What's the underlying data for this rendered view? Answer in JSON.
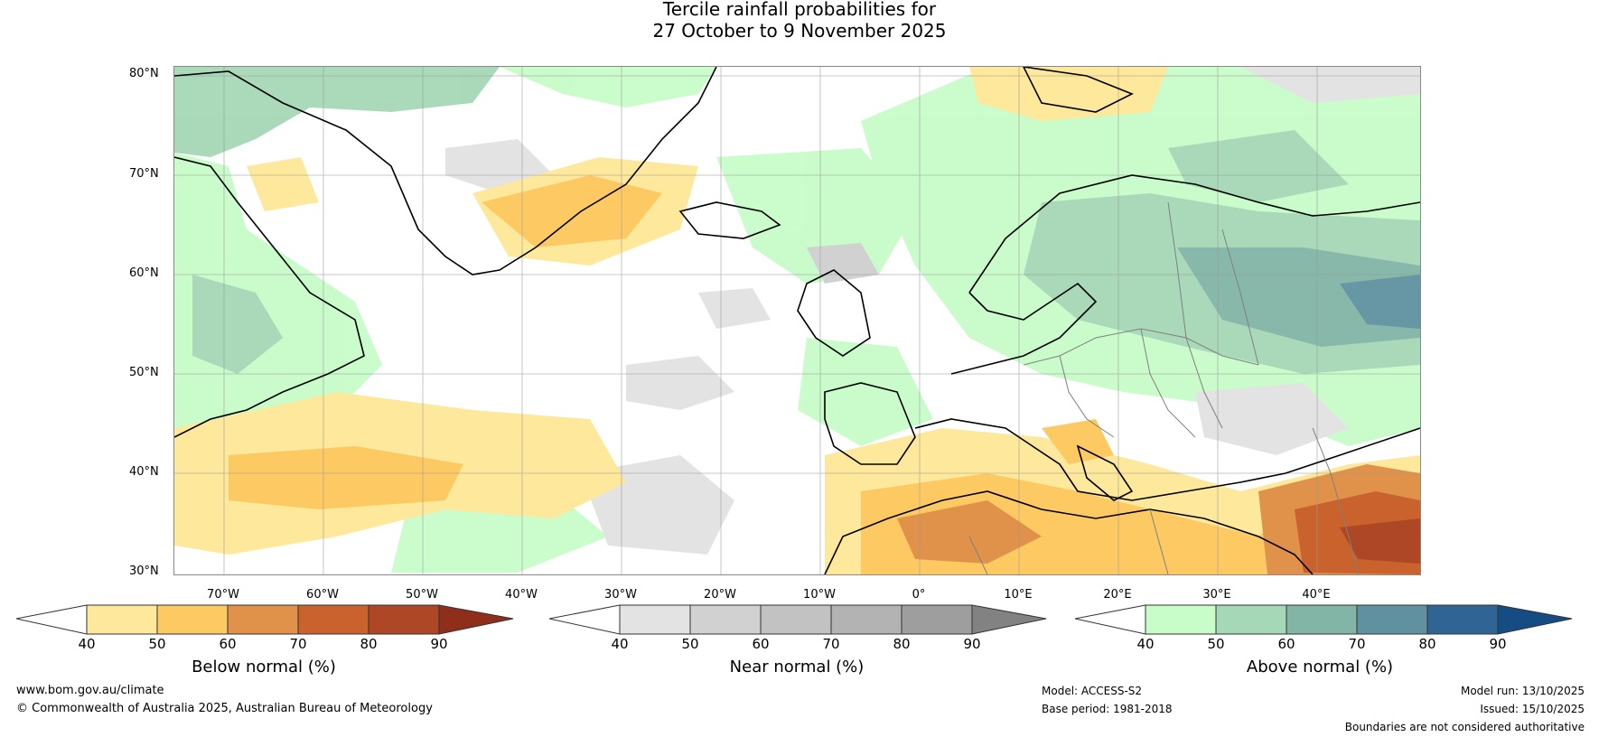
{
  "title": {
    "line1": "Tercile rainfall probabilities for",
    "line2": "27 October to 9 November 2025"
  },
  "map": {
    "latitude_labels": [
      "80°N",
      "70°N",
      "60°N",
      "50°N",
      "40°N",
      "30°N"
    ],
    "longitude_labels": [
      "70°W",
      "60°W",
      "50°W",
      "40°W",
      "30°W",
      "20°W",
      "10°W",
      "0°",
      "10°E",
      "20°E",
      "30°E",
      "40°E"
    ]
  },
  "colorbars": [
    {
      "label": "Below normal (%)",
      "ticks": [
        "40",
        "50",
        "60",
        "70",
        "80",
        "90"
      ],
      "colors": [
        "#ffffff",
        "#fee89b",
        "#fdc962",
        "#e0914a",
        "#c9622d",
        "#ad4726",
        "#8f2f1b"
      ]
    },
    {
      "label": "Near normal (%)",
      "ticks": [
        "40",
        "50",
        "60",
        "70",
        "80",
        "90"
      ],
      "colors": [
        "#ffffff",
        "#e3e3e3",
        "#d1d1d1",
        "#c2c2c2",
        "#b3b3b3",
        "#9e9e9e",
        "#828282"
      ]
    },
    {
      "label": "Above normal (%)",
      "ticks": [
        "40",
        "50",
        "60",
        "70",
        "80",
        "90"
      ],
      "colors": [
        "#ffffff",
        "#c8fcc9",
        "#a5d8b6",
        "#82b5a6",
        "#5f91a1",
        "#306494",
        "#144c83"
      ]
    }
  ],
  "footer": {
    "url": "www.bom.gov.au/climate",
    "copyright": "© Commonwealth of Australia 2025, Australian Bureau of Meteorology",
    "model": "Model: ACCESS-S2",
    "base_period": "Base period: 1981-2018",
    "model_run": "Model run: 13/10/2025",
    "issued": "Issued: 15/10/2025",
    "disclaimer": "Boundaries are not considered authoritative"
  }
}
